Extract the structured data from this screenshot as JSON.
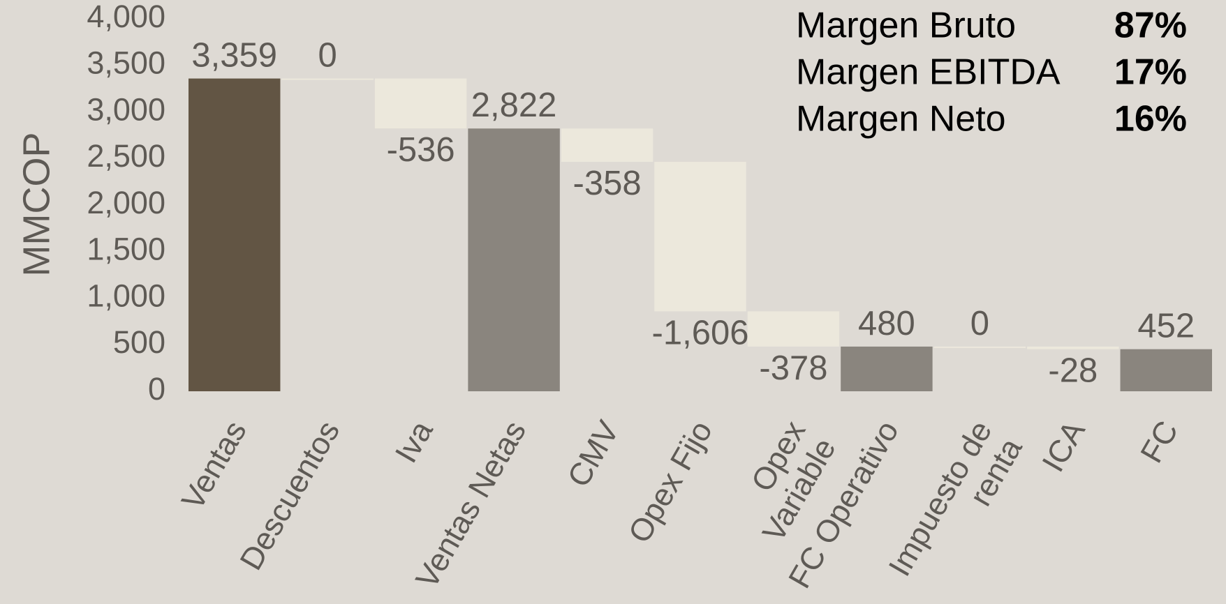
{
  "chart_data": {
    "type": "waterfall",
    "y_label": "MMCOP",
    "categories": [
      "Ventas",
      "Descuentos",
      "Iva",
      "Ventas Netas",
      "CMV",
      "Opex Fijo",
      "Opex Variable",
      "FC Operativo",
      "Impuesto de renta",
      "ICA",
      "FC"
    ],
    "values": [
      3359,
      0,
      -536,
      2822,
      -358,
      -1606,
      -378,
      480,
      0,
      -28,
      452
    ],
    "measure": [
      "total",
      "relative",
      "relative",
      "total",
      "relative",
      "relative",
      "relative",
      "total",
      "relative",
      "relative",
      "total"
    ],
    "colors": [
      "#625544",
      "#ece8dc",
      "#ece8dc",
      "#8a857e",
      "#ece8dc",
      "#ece8dc",
      "#ece8dc",
      "#8a857e",
      "#ece8dc",
      "#ece8dc",
      "#8a857e"
    ],
    "value_labels": [
      "3,359",
      "0",
      "-536",
      "2,822",
      "-358",
      "-1,606",
      "-378",
      "480",
      "0",
      "-28",
      "452"
    ],
    "ylim": [
      0,
      4000
    ],
    "yticks": [
      0,
      500,
      {
        "value": 1000,
        "label": "1,000"
      },
      {
        "value": 1500,
        "label": "1,500"
      },
      {
        "value": 2000,
        "label": "2,000"
      },
      {
        "value": 2500,
        "label": "2,500"
      },
      {
        "value": 3000,
        "label": "3,000"
      },
      {
        "value": 3500,
        "label": "3,500"
      },
      {
        "value": 4000,
        "label": "4,000"
      }
    ],
    "margins": [
      {
        "label": "Margen Bruto",
        "value": "87%"
      },
      {
        "label": "Margen EBITDA",
        "value": "17%"
      },
      {
        "label": "Margen Neto",
        "value": "16%"
      }
    ]
  }
}
